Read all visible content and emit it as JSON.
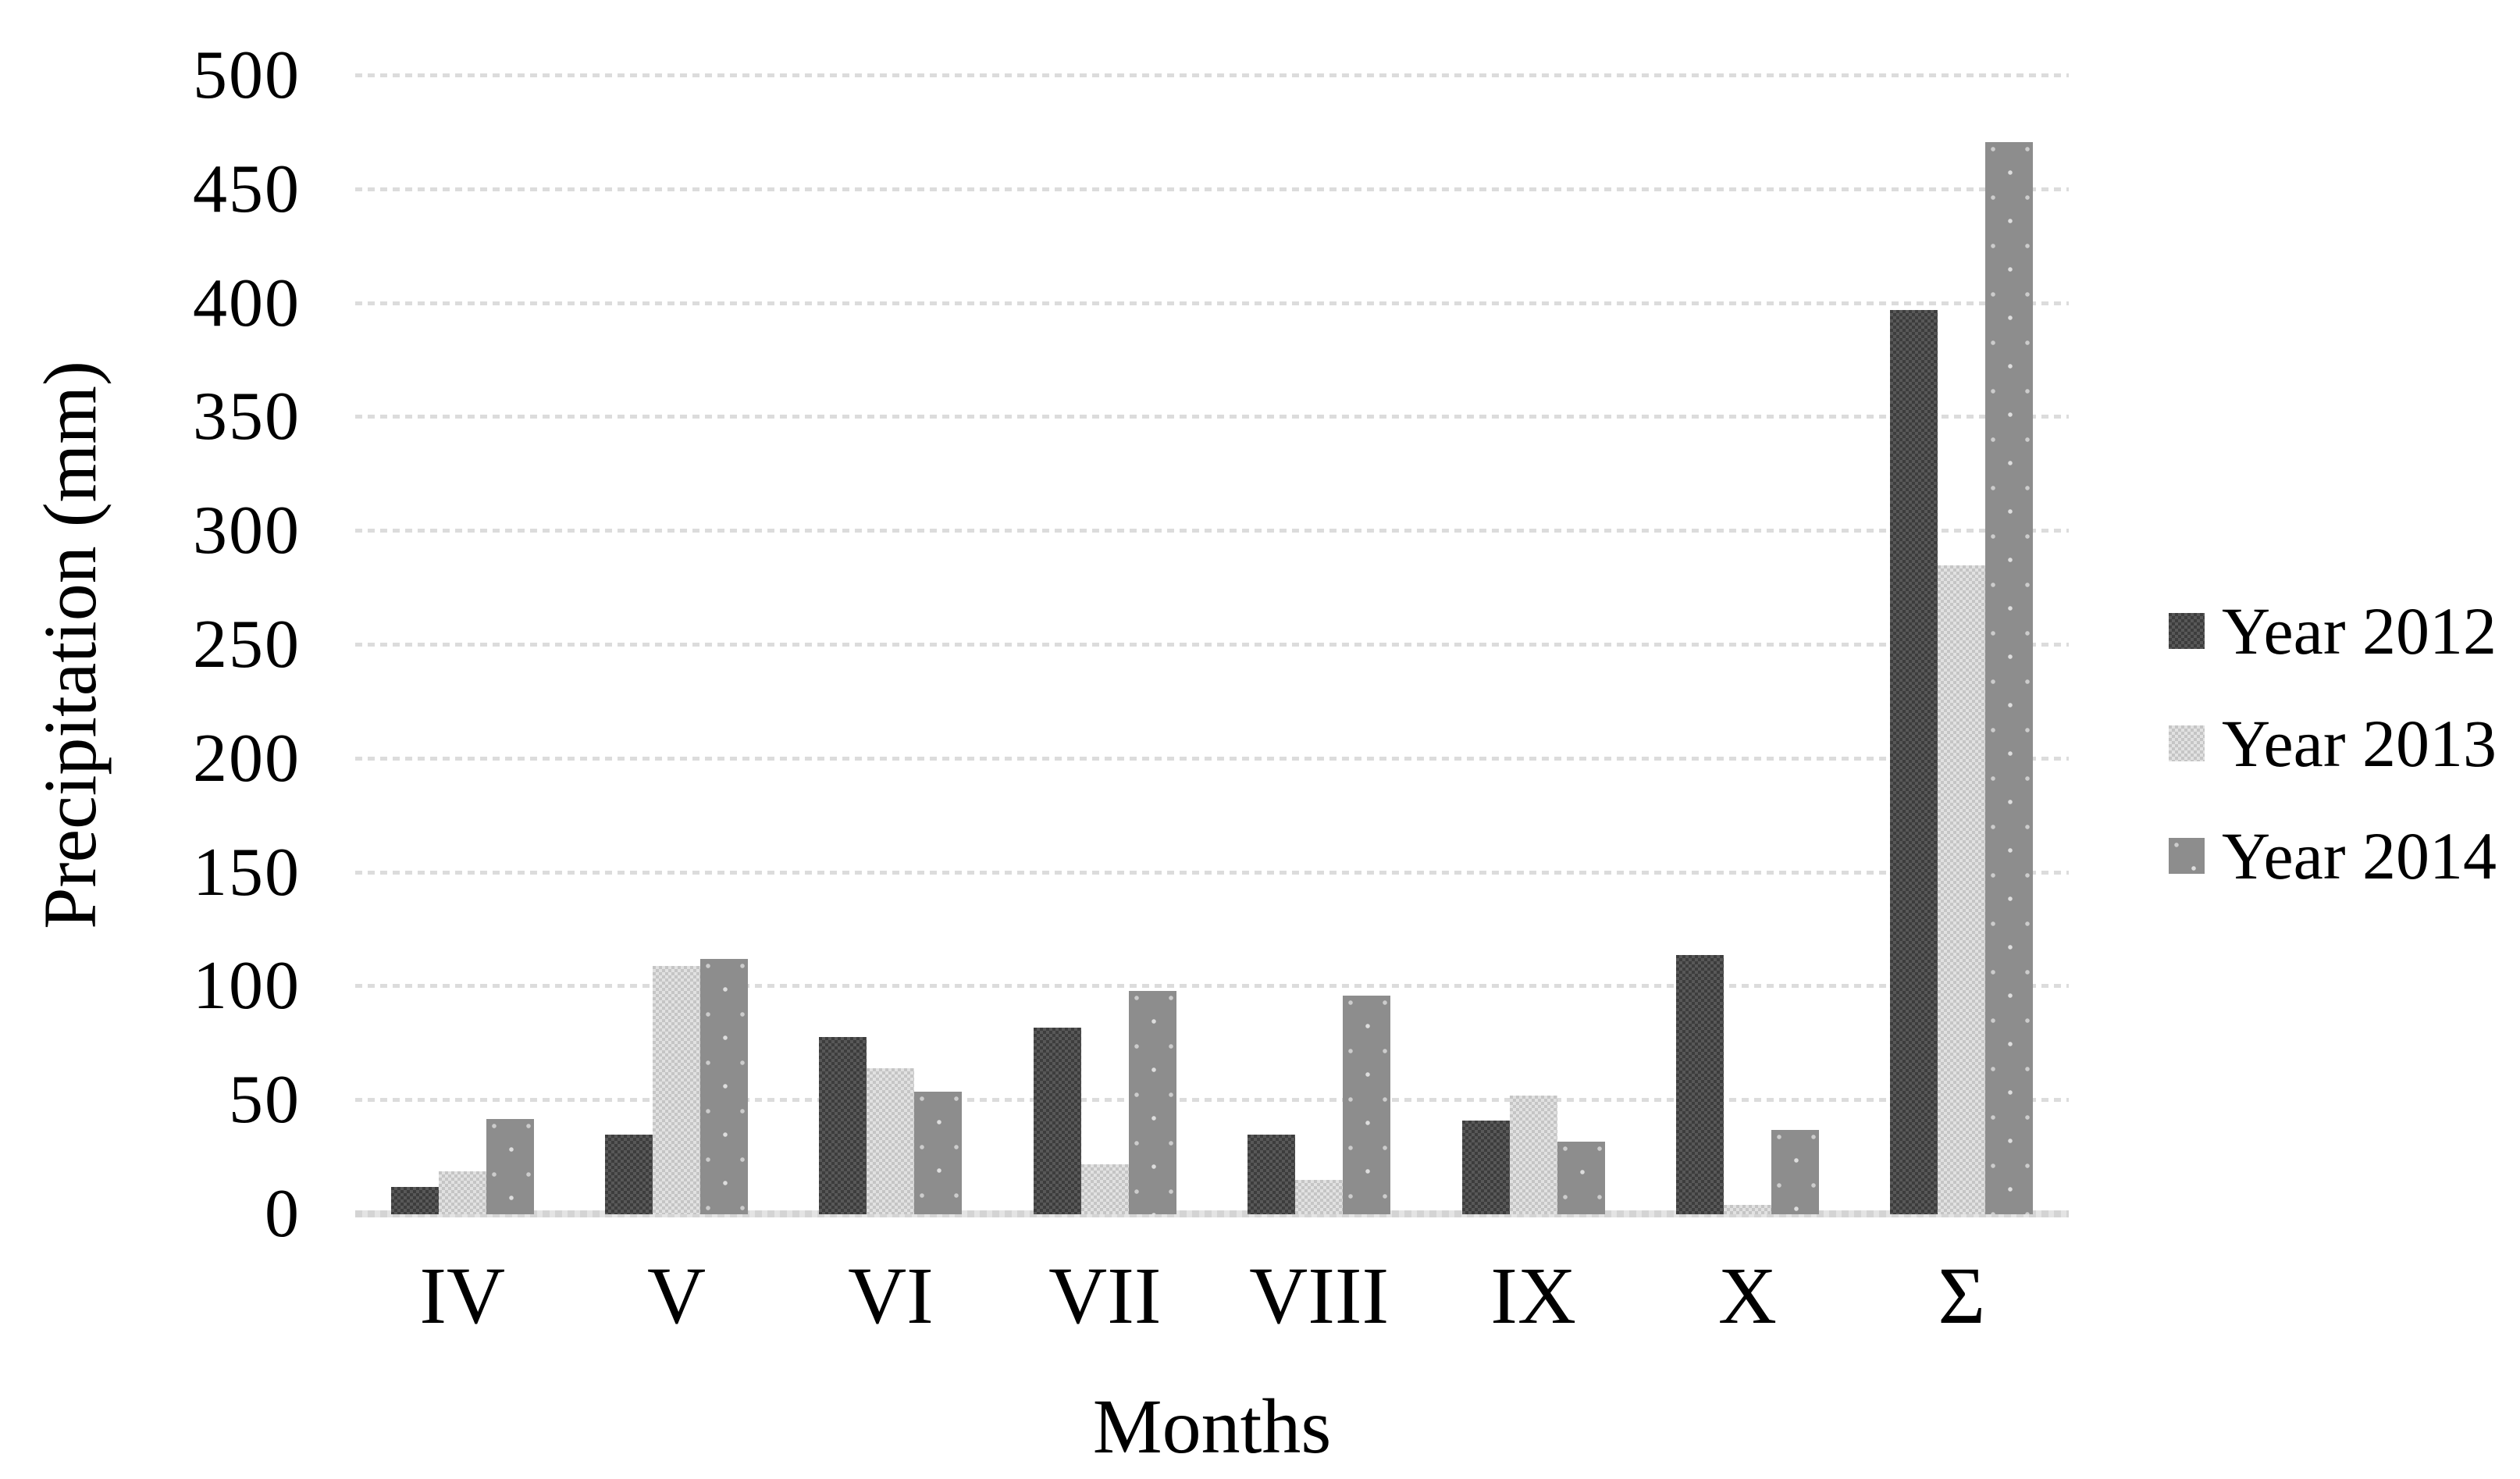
{
  "colors": {
    "background": "#ffffff",
    "text": "#000000",
    "gridline": "#dcdcdc",
    "series_year_2012": "#4a4a4a",
    "series_year_2013": "#d3d3d3",
    "series_year_2014": "#8d8d8d"
  },
  "y_axis": {
    "title": "Precipitation (mm)",
    "tick_labels": [
      "0",
      "50",
      "100",
      "150",
      "200",
      "250",
      "300",
      "350",
      "400",
      "450",
      "500"
    ]
  },
  "x_axis": {
    "title": "Months",
    "labels": [
      "IV",
      "V",
      "VI",
      "VII",
      "VIII",
      "IX",
      "X",
      "Σ"
    ]
  },
  "legend": {
    "position": "right",
    "items": [
      "Year 2012",
      "Year 2013",
      "Year 2014"
    ]
  },
  "chart_data": {
    "type": "bar",
    "title": "",
    "xlabel": "Months",
    "ylabel": "Precipitation (mm)",
    "categories": [
      "IV",
      "V",
      "VI",
      "VII",
      "VIII",
      "IX",
      "X",
      "Σ"
    ],
    "series": [
      {
        "name": "Year 2012",
        "values": [
          12,
          35,
          78,
          82,
          35,
          41,
          114,
          397
        ]
      },
      {
        "name": "Year 2013",
        "values": [
          19,
          109,
          64,
          22,
          15,
          52,
          4,
          285
        ]
      },
      {
        "name": "Year 2014",
        "values": [
          42,
          112,
          54,
          98,
          96,
          32,
          37,
          471
        ]
      }
    ],
    "ylim": [
      0,
      500
    ],
    "ytick_step": 50,
    "grid": true,
    "gridline_style": "dotted",
    "legend_position": "right"
  }
}
